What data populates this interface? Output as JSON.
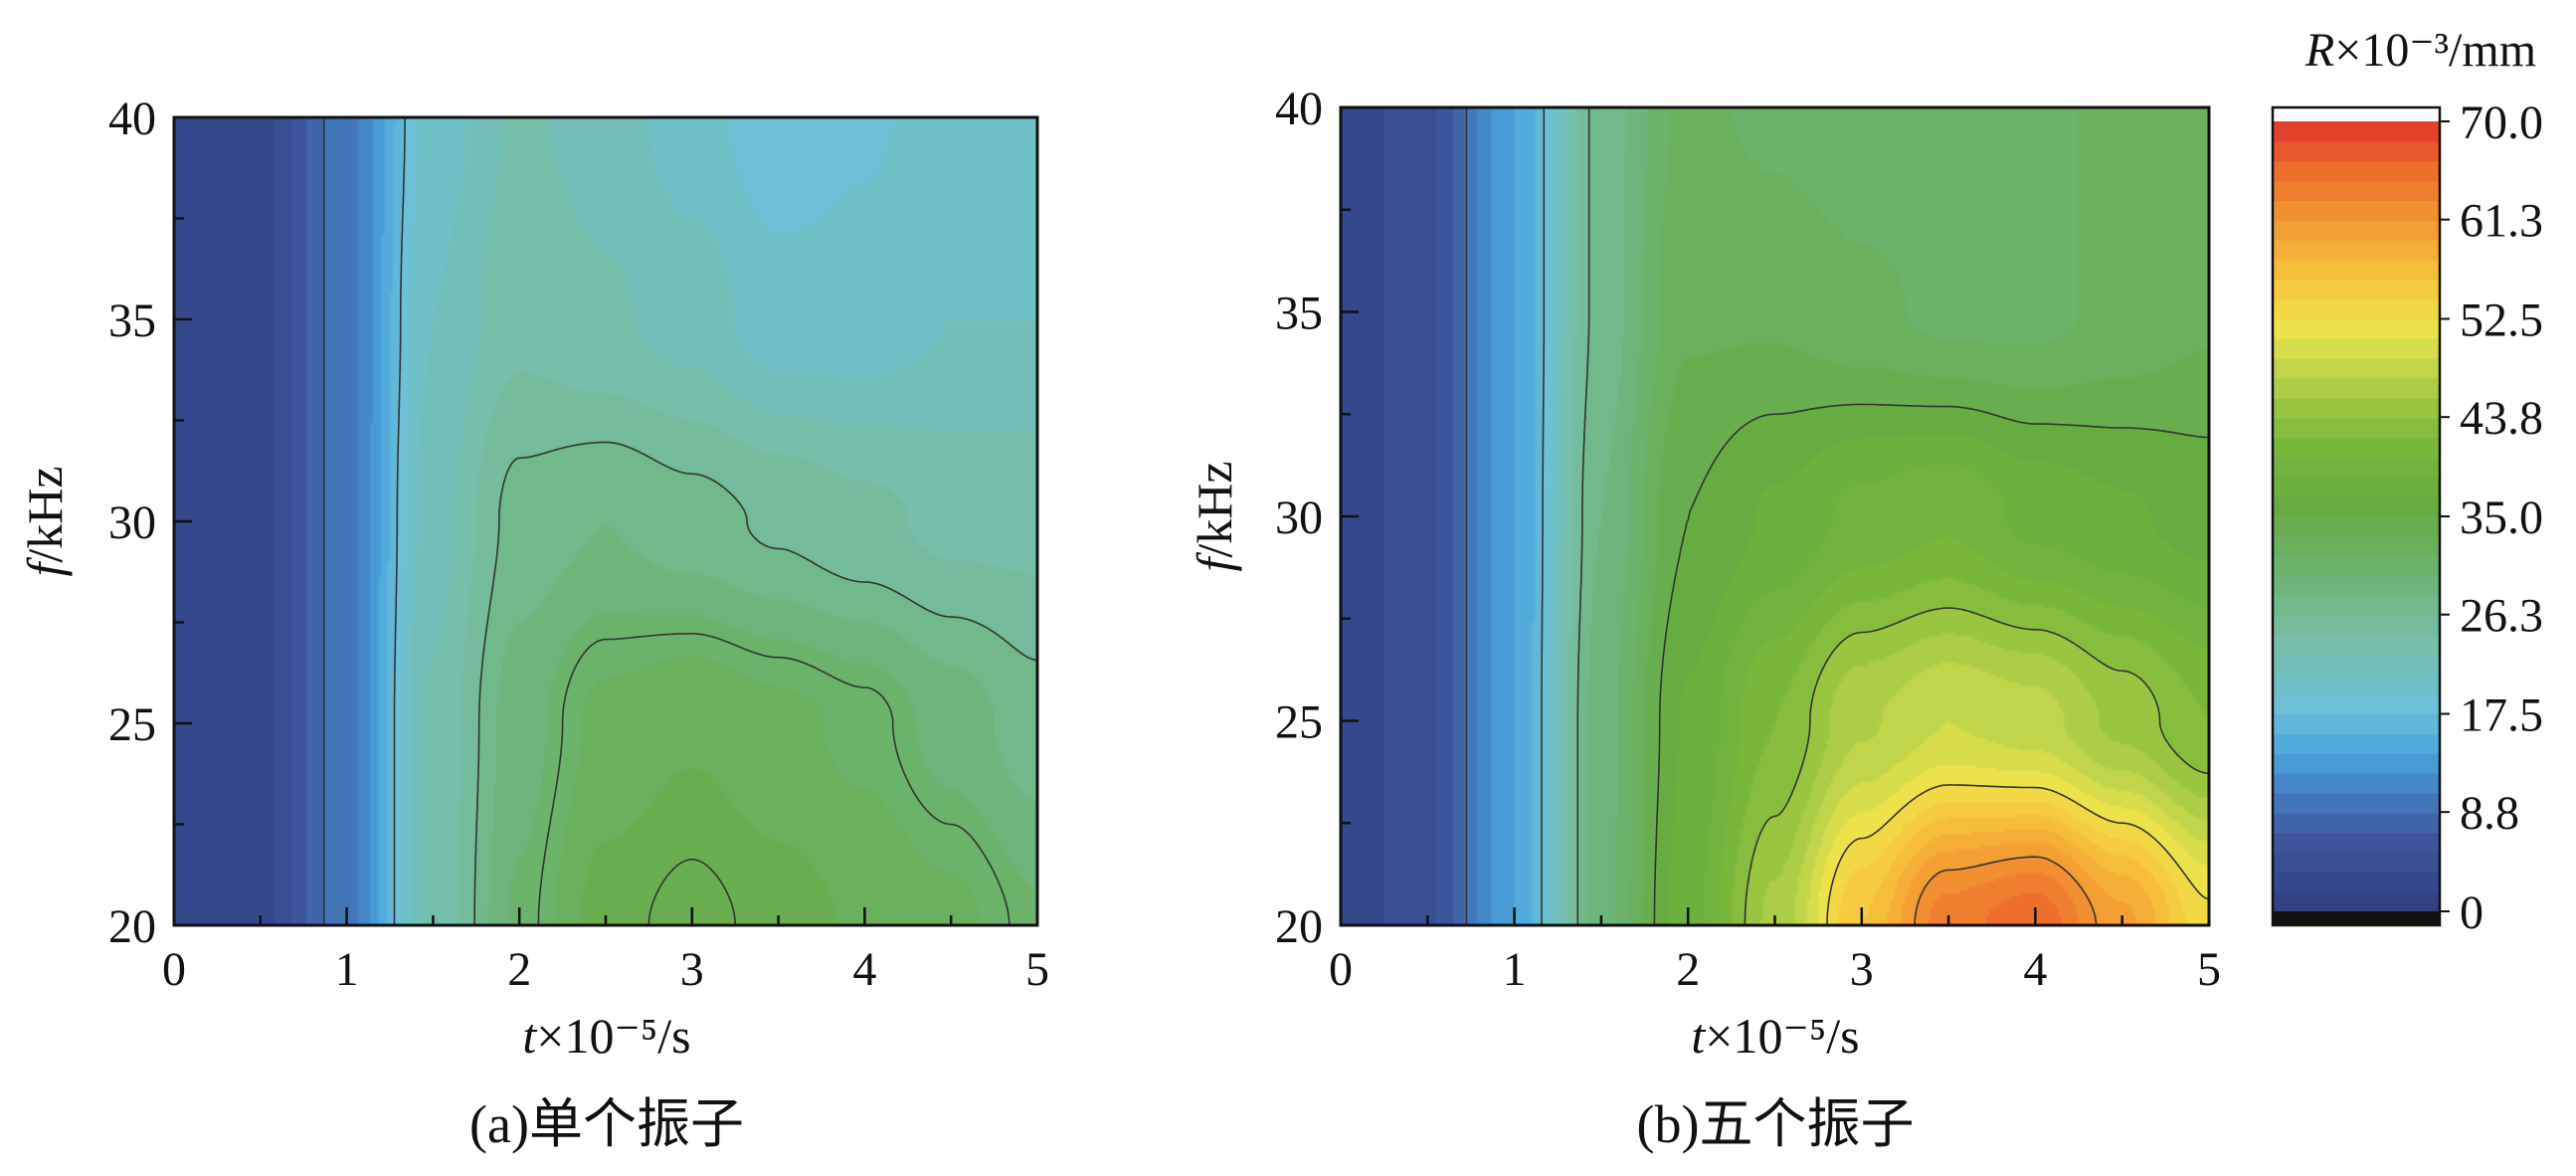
{
  "chart_data": [
    {
      "type": "heatmap",
      "panel": "a",
      "caption": "(a)单个振子",
      "xlabel_italic": "t",
      "xlabel_rest": "×10⁻⁵/s",
      "ylabel_italic": "f",
      "ylabel_rest": "/kHz",
      "xlim": [
        0,
        5
      ],
      "ylim": [
        20,
        40
      ],
      "xticks": [
        0,
        1,
        2,
        3,
        4,
        5
      ],
      "yticks": [
        20,
        25,
        30,
        35,
        40
      ],
      "z_samples": {
        "f_rows": [
          20,
          25,
          30,
          35,
          40
        ],
        "t_cols": [
          0,
          0.5,
          1,
          1.5,
          2,
          2.5,
          3,
          3.5,
          4,
          4.5,
          5
        ],
        "values": [
          [
            2,
            3,
            10,
            23,
            30,
            34,
            35,
            34,
            33,
            32,
            30
          ],
          [
            2,
            3,
            10,
            23,
            29,
            32,
            33,
            32,
            31,
            29,
            27
          ],
          [
            2,
            3,
            10,
            22,
            27,
            28,
            27,
            26,
            25,
            24,
            24
          ],
          [
            2,
            3,
            10,
            21,
            24,
            23,
            22,
            20,
            20,
            21,
            21
          ],
          [
            2,
            3,
            10,
            20,
            23,
            22,
            20,
            18,
            19,
            20,
            21
          ]
        ]
      },
      "contour_levels": [
        8.8,
        17.5,
        26.3,
        30.5,
        34.5
      ]
    },
    {
      "type": "heatmap",
      "panel": "b",
      "caption": "(b)五个振子",
      "xlabel_italic": "t",
      "xlabel_rest": "×10⁻⁵/s",
      "ylabel_italic": "f",
      "ylabel_rest": "/kHz",
      "xlim": [
        0,
        5
      ],
      "ylim": [
        20,
        40
      ],
      "xticks": [
        0,
        1,
        2,
        3,
        4,
        5
      ],
      "yticks": [
        20,
        25,
        30,
        35,
        40
      ],
      "z_samples": {
        "f_rows": [
          20,
          25,
          30,
          35,
          40
        ],
        "t_cols": [
          0,
          0.5,
          1,
          1.5,
          2,
          2.5,
          3,
          3.5,
          4,
          4.5,
          5
        ],
        "values": [
          [
            2,
            5,
            14,
            29,
            38,
            46,
            56,
            64,
            66,
            60,
            53
          ],
          [
            2,
            5,
            14,
            29,
            37,
            42,
            47,
            49,
            48,
            45,
            42
          ],
          [
            2,
            5,
            14,
            28,
            35,
            37,
            39,
            40,
            38,
            37,
            36
          ],
          [
            2,
            5,
            14,
            27,
            33,
            33,
            32,
            31,
            31,
            32,
            33
          ],
          [
            2,
            5,
            14,
            27,
            32,
            31,
            30,
            30,
            31,
            32,
            33
          ]
        ]
      },
      "contour_levels": [
        8.8,
        17.5,
        26.3,
        35.0,
        43.8,
        52.5,
        61.3
      ]
    }
  ],
  "colorbar": {
    "title_italic": "R",
    "title_rest": "×10⁻³/mm",
    "tick_labels": [
      "70.0",
      "61.3",
      "52.5",
      "43.8",
      "35.0",
      "26.3",
      "17.5",
      "8.8",
      "0"
    ],
    "tick_values": [
      70.0,
      61.3,
      52.5,
      43.8,
      35.0,
      26.3,
      17.5,
      8.8,
      0
    ],
    "range": [
      0,
      70
    ],
    "color_stops": [
      {
        "v": 0,
        "c": "#2f3d7f"
      },
      {
        "v": 6,
        "c": "#3d559a"
      },
      {
        "v": 10,
        "c": "#4379bb"
      },
      {
        "v": 14,
        "c": "#4aa6dd"
      },
      {
        "v": 18,
        "c": "#6cc0d8"
      },
      {
        "v": 24,
        "c": "#76bfa8"
      },
      {
        "v": 30,
        "c": "#6cb370"
      },
      {
        "v": 36,
        "c": "#66ac40"
      },
      {
        "v": 42,
        "c": "#7cb93a"
      },
      {
        "v": 48,
        "c": "#bfd54a"
      },
      {
        "v": 52,
        "c": "#f1e34b"
      },
      {
        "v": 56,
        "c": "#f7c43c"
      },
      {
        "v": 61,
        "c": "#f39a32"
      },
      {
        "v": 66,
        "c": "#ee6a2c"
      },
      {
        "v": 70,
        "c": "#e0352b"
      }
    ],
    "under_color": "#111111",
    "over_color": "#ffffff"
  }
}
